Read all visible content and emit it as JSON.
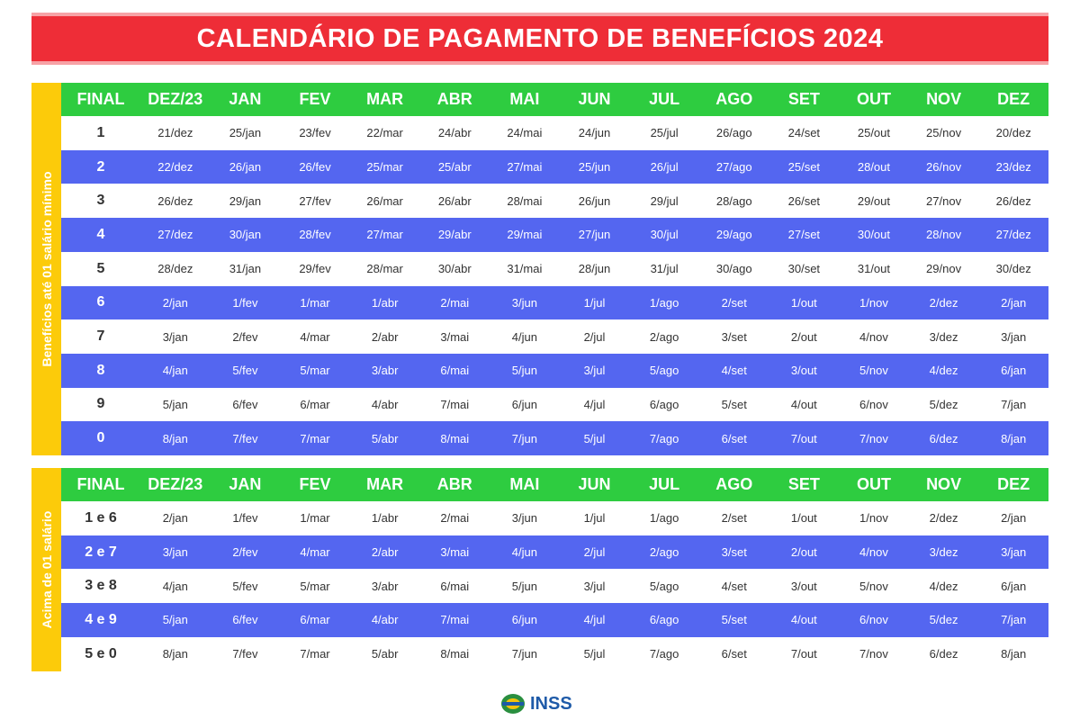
{
  "title": "CALENDÁRIO DE PAGAMENTO DE BENEFÍCIOS 2024",
  "tables": [
    {
      "side_label": "Benefícios até 01 salário mínimo",
      "header": [
        "FINAL",
        "DEZ/23",
        "JAN",
        "FEV",
        "MAR",
        "ABR",
        "MAI",
        "JUN",
        "JUL",
        "AGO",
        "SET",
        "OUT",
        "NOV",
        "DEZ"
      ],
      "rows": [
        [
          "1",
          "21/dez",
          "25/jan",
          "23/fev",
          "22/mar",
          "24/abr",
          "24/mai",
          "24/jun",
          "25/jul",
          "26/ago",
          "24/set",
          "25/out",
          "25/nov",
          "20/dez"
        ],
        [
          "2",
          "22/dez",
          "26/jan",
          "26/fev",
          "25/mar",
          "25/abr",
          "27/mai",
          "25/jun",
          "26/jul",
          "27/ago",
          "25/set",
          "28/out",
          "26/nov",
          "23/dez"
        ],
        [
          "3",
          "26/dez",
          "29/jan",
          "27/fev",
          "26/mar",
          "26/abr",
          "28/mai",
          "26/jun",
          "29/jul",
          "28/ago",
          "26/set",
          "29/out",
          "27/nov",
          "26/dez"
        ],
        [
          "4",
          "27/dez",
          "30/jan",
          "28/fev",
          "27/mar",
          "29/abr",
          "29/mai",
          "27/jun",
          "30/jul",
          "29/ago",
          "27/set",
          "30/out",
          "28/nov",
          "27/dez"
        ],
        [
          "5",
          "28/dez",
          "31/jan",
          "29/fev",
          "28/mar",
          "30/abr",
          "31/mai",
          "28/jun",
          "31/jul",
          "30/ago",
          "30/set",
          "31/out",
          "29/nov",
          "30/dez"
        ],
        [
          "6",
          "2/jan",
          "1/fev",
          "1/mar",
          "1/abr",
          "2/mai",
          "3/jun",
          "1/jul",
          "1/ago",
          "2/set",
          "1/out",
          "1/nov",
          "2/dez",
          "2/jan"
        ],
        [
          "7",
          "3/jan",
          "2/fev",
          "4/mar",
          "2/abr",
          "3/mai",
          "4/jun",
          "2/jul",
          "2/ago",
          "3/set",
          "2/out",
          "4/nov",
          "3/dez",
          "3/jan"
        ],
        [
          "8",
          "4/jan",
          "5/fev",
          "5/mar",
          "3/abr",
          "6/mai",
          "5/jun",
          "3/jul",
          "5/ago",
          "4/set",
          "3/out",
          "5/nov",
          "4/dez",
          "6/jan"
        ],
        [
          "9",
          "5/jan",
          "6/fev",
          "6/mar",
          "4/abr",
          "7/mai",
          "6/jun",
          "4/jul",
          "6/ago",
          "5/set",
          "4/out",
          "6/nov",
          "5/dez",
          "7/jan"
        ],
        [
          "0",
          "8/jan",
          "7/fev",
          "7/mar",
          "5/abr",
          "8/mai",
          "7/jun",
          "5/jul",
          "7/ago",
          "6/set",
          "7/out",
          "7/nov",
          "6/dez",
          "8/jan"
        ]
      ]
    },
    {
      "side_label": "Acima de 01 salário",
      "header": [
        "FINAL",
        "DEZ/23",
        "JAN",
        "FEV",
        "MAR",
        "ABR",
        "MAI",
        "JUN",
        "JUL",
        "AGO",
        "SET",
        "OUT",
        "NOV",
        "DEZ"
      ],
      "rows": [
        [
          "1 e 6",
          "2/jan",
          "1/fev",
          "1/mar",
          "1/abr",
          "2/mai",
          "3/jun",
          "1/jul",
          "1/ago",
          "2/set",
          "1/out",
          "1/nov",
          "2/dez",
          "2/jan"
        ],
        [
          "2 e 7",
          "3/jan",
          "2/fev",
          "4/mar",
          "2/abr",
          "3/mai",
          "4/jun",
          "2/jul",
          "2/ago",
          "3/set",
          "2/out",
          "4/nov",
          "3/dez",
          "3/jan"
        ],
        [
          "3 e 8",
          "4/jan",
          "5/fev",
          "5/mar",
          "3/abr",
          "6/mai",
          "5/jun",
          "3/jul",
          "5/ago",
          "4/set",
          "3/out",
          "5/nov",
          "4/dez",
          "6/jan"
        ],
        [
          "4 e 9",
          "5/jan",
          "6/fev",
          "6/mar",
          "4/abr",
          "7/mai",
          "6/jun",
          "4/jul",
          "6/ago",
          "5/set",
          "4/out",
          "6/nov",
          "5/dez",
          "7/jan"
        ],
        [
          "5 e 0",
          "8/jan",
          "7/fev",
          "7/mar",
          "5/abr",
          "8/mai",
          "7/jun",
          "5/jul",
          "7/ago",
          "6/set",
          "7/out",
          "7/nov",
          "6/dez",
          "8/jan"
        ]
      ]
    }
  ],
  "footer": {
    "logo": "INSS"
  }
}
